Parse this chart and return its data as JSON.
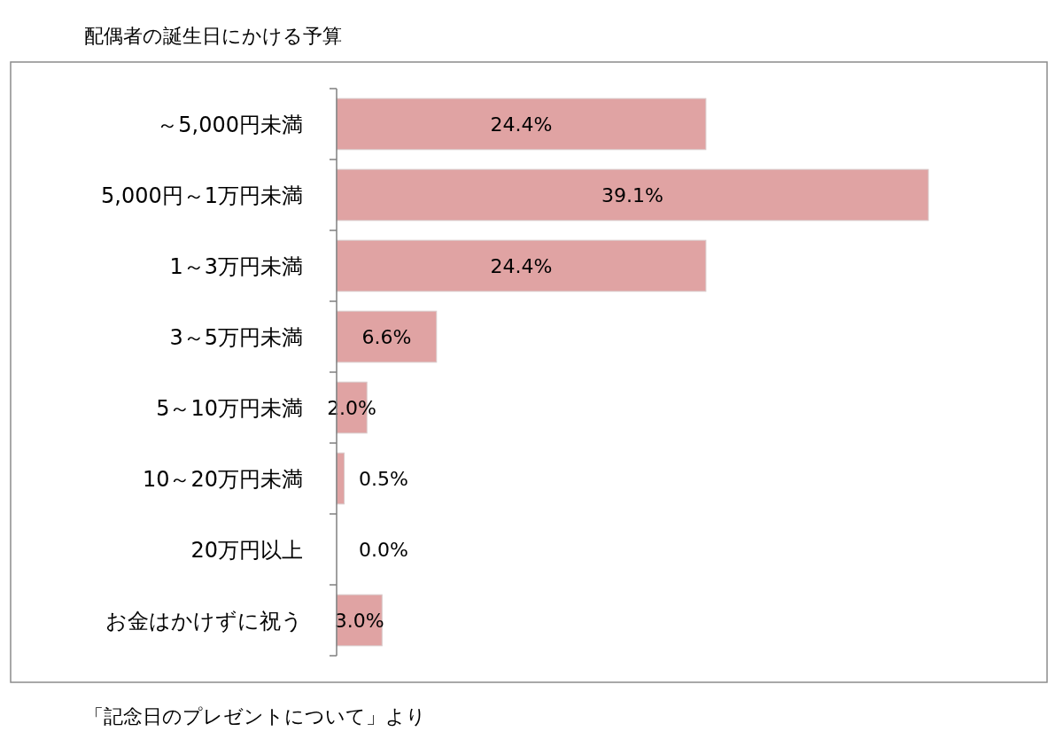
{
  "chart_data": {
    "type": "bar",
    "orientation": "horizontal",
    "title": "配偶者の誕生日にかける予算",
    "categories": [
      "～5,000円未満",
      "5,000円～1万円未満",
      "1～3万円未満",
      "3～5万円未満",
      "5～10万円未満",
      "10～20万円未満",
      "20万円以上",
      "お金はかけずに祝う"
    ],
    "values": [
      24.4,
      39.1,
      24.4,
      6.6,
      2.0,
      0.5,
      0.0,
      3.0
    ],
    "value_labels": [
      "24.4%",
      "39.1%",
      "24.4%",
      "6.6%",
      "2.0%",
      "0.5%",
      "0.0%",
      "3.0%"
    ],
    "color": "#e0a3a3",
    "annotations": [
      "「記念日のプレゼントについて」より"
    ]
  }
}
